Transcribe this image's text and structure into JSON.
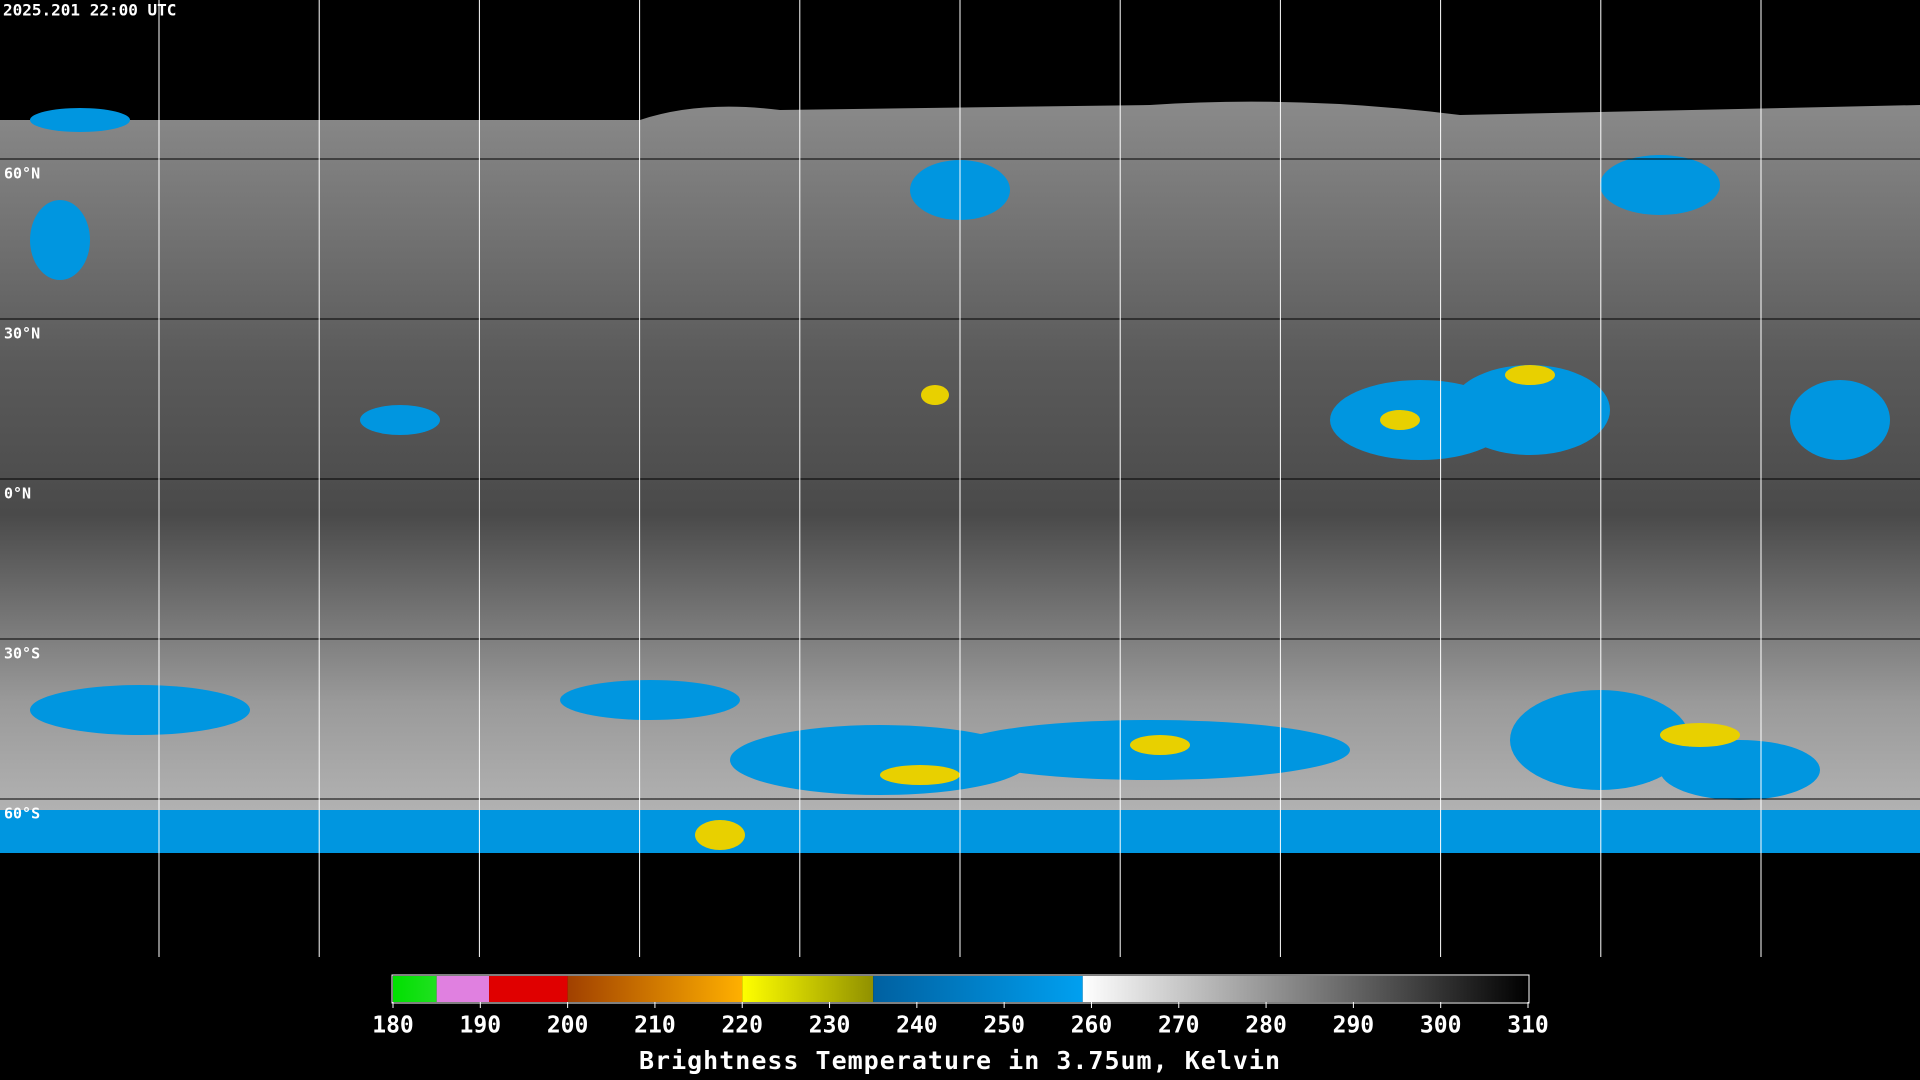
{
  "header": {
    "timestamp": "2025.201 22:00 UTC"
  },
  "latitude_labels": [
    "60°N",
    "30°N",
    "0°N",
    "30°S",
    "60°S"
  ],
  "colorbar": {
    "title": "Brightness Temperature in 3.75um, Kelvin",
    "range": [
      180,
      310
    ],
    "ticks": [
      180,
      190,
      200,
      210,
      220,
      230,
      240,
      250,
      260,
      270,
      280,
      290,
      300,
      310
    ],
    "segments": [
      {
        "from": 180,
        "to": 185,
        "colors": [
          "#00e000",
          "#20e020"
        ]
      },
      {
        "from": 185,
        "to": 191,
        "colors": [
          "#e080e0",
          "#e080e0"
        ]
      },
      {
        "from": 191,
        "to": 200,
        "colors": [
          "#e00000",
          "#e00000"
        ]
      },
      {
        "from": 200,
        "to": 220,
        "colors": [
          "#a04000",
          "#ffb000"
        ]
      },
      {
        "from": 220,
        "to": 235,
        "colors": [
          "#ffff00",
          "#909000"
        ]
      },
      {
        "from": 235,
        "to": 259,
        "colors": [
          "#0060a0",
          "#00a0f0"
        ]
      },
      {
        "from": 259,
        "to": 310,
        "colors": [
          "#ffffff",
          "#000000"
        ]
      }
    ]
  }
}
